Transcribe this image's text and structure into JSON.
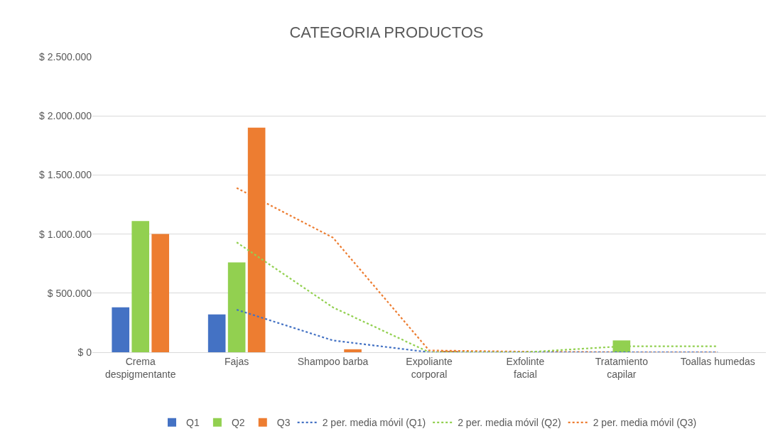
{
  "chart_data": {
    "type": "bar",
    "title": "CATEGORIA PRODUCTOS",
    "categories": [
      "Crema despigmentante",
      "Fajas",
      "Shampoo barba",
      "Expoliante corporal",
      "Exfolinte facial",
      "Tratamiento capilar",
      "Toallas humedas"
    ],
    "series": [
      {
        "name": "Q1",
        "color": "#4472c4",
        "values": [
          380000,
          320000,
          0,
          0,
          0,
          0,
          0
        ]
      },
      {
        "name": "Q2",
        "color": "#92d050",
        "values": [
          1110000,
          760000,
          0,
          0,
          0,
          100000,
          0
        ]
      },
      {
        "name": "Q3",
        "color": "#ed7d31",
        "values": [
          1000000,
          1900000,
          25000,
          10000,
          0,
          0,
          0
        ]
      },
      {
        "name": "2 per. media móvil (Q1)",
        "type": "line",
        "line_style": "dotted",
        "color": "#4472c4",
        "values": [
          null,
          360000,
          100000,
          0,
          0,
          0,
          0
        ]
      },
      {
        "name": "2 per. media móvil (Q2)",
        "type": "line",
        "line_style": "dotted",
        "color": "#92d050",
        "values": [
          null,
          930000,
          380000,
          0,
          0,
          50000,
          50000
        ]
      },
      {
        "name": "2 per. media móvil (Q3)",
        "type": "line",
        "line_style": "dotted",
        "color": "#ed7d31",
        "values": [
          null,
          1390000,
          970000,
          15000,
          5000,
          0,
          0
        ]
      }
    ],
    "ylim": [
      0,
      2500000
    ],
    "yticks": [
      {
        "value": 0,
        "label": "$ 0"
      },
      {
        "value": 500000,
        "label": "$ 500.000"
      },
      {
        "value": 1000000,
        "label": "$ 1.000.000"
      },
      {
        "value": 1500000,
        "label": "$ 1.500.000"
      },
      {
        "value": 2000000,
        "label": "$ 2.000.000"
      },
      {
        "value": 2500000,
        "label": "$ 2.500.000"
      }
    ],
    "grid": "y",
    "legend": "bottom"
  }
}
